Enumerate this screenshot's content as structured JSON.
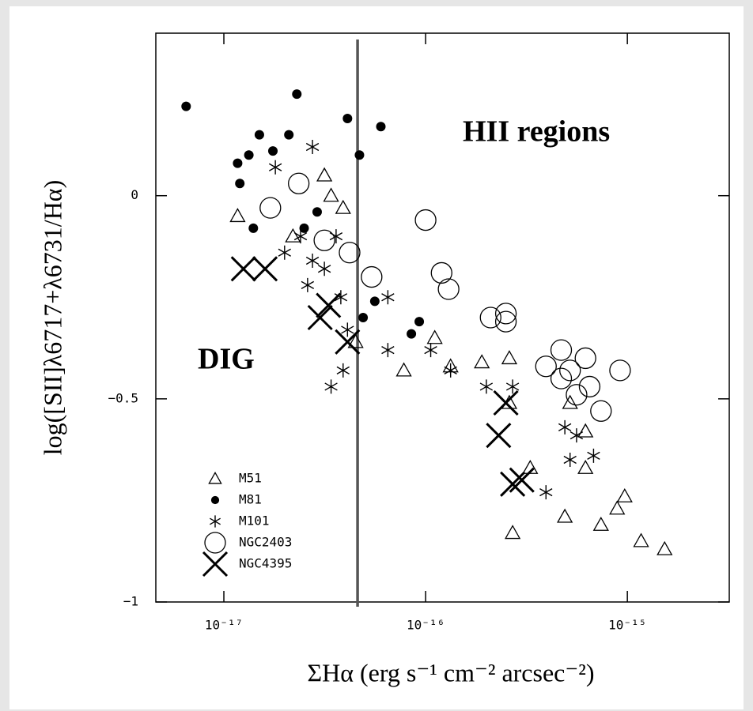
{
  "chart_data": {
    "type": "scatter",
    "xlabel": "ΣHα (erg s⁻¹ cm⁻² arcsec⁻²)",
    "ylabel": "log([SII]λ6717+λ6731/Hα)",
    "xscale": "log",
    "xlim": [
      4.6e-18,
      3.2e-15
    ],
    "ylim": [
      -1,
      0.4
    ],
    "xticks": [
      {
        "value": 1e-17,
        "label": "10⁻¹⁷"
      },
      {
        "value": 1e-16,
        "label": "10⁻¹⁶"
      },
      {
        "value": 1e-15,
        "label": "10⁻¹⁵"
      }
    ],
    "yticks": [
      {
        "value": -1,
        "label": "−1"
      },
      {
        "value": -0.5,
        "label": "−0.5"
      },
      0
    ],
    "vline_x": 4.6e-17,
    "annotations": [
      "HII regions",
      "DIG"
    ],
    "legend": "lower left",
    "series": [
      {
        "name": "M51",
        "marker": "triangle",
        "color": "#000000",
        "x": [
          1.17e-17,
          3.15e-17,
          3.4e-17,
          3.9e-17,
          2.2e-17,
          4.5e-17,
          7.8e-17,
          1.11e-16,
          1.33e-16,
          1.9e-16,
          2.6e-16,
          2.6e-16,
          5.2e-16,
          6.2e-16,
          3.3e-16,
          2.7e-16,
          4.9e-16,
          7.4e-16,
          8.9e-16,
          9.7e-16,
          1.17e-15,
          1.53e-15,
          6.2e-16
        ],
        "values": [
          -0.05,
          0.05,
          0,
          -0.03,
          -0.1,
          -0.36,
          -0.43,
          -0.35,
          -0.42,
          -0.41,
          -0.4,
          -0.51,
          -0.51,
          -0.58,
          -0.67,
          -0.83,
          -0.79,
          -0.81,
          -0.77,
          -0.74,
          -0.85,
          -0.87,
          -0.67
        ]
      },
      {
        "name": "M81",
        "marker": "dot",
        "color": "#000000",
        "x": [
          6.5e-18,
          1.17e-17,
          1.33e-17,
          1.5e-17,
          1.2e-17,
          1.75e-17,
          2.1e-17,
          2.3e-17,
          4.1e-17,
          4.7e-17,
          6e-17,
          1.4e-17,
          2.5e-17,
          2.9e-17,
          4.9e-17,
          5.6e-17,
          8.5e-17,
          9.3e-17
        ],
        "values": [
          0.22,
          0.08,
          0.1,
          0.15,
          0.03,
          0.11,
          0.15,
          0.25,
          0.19,
          0.1,
          0.17,
          -0.08,
          -0.08,
          -0.04,
          -0.3,
          -0.26,
          -0.34,
          -0.31
        ]
      },
      {
        "name": "M101",
        "marker": "asterisk",
        "color": "#000000",
        "x": [
          2.75e-17,
          1.8e-17,
          2e-17,
          2.4e-17,
          2.75e-17,
          2.6e-17,
          3.15e-17,
          3.6e-17,
          3.8e-17,
          3.4e-17,
          3.9e-17,
          4.1e-17,
          6.5e-17,
          6.5e-17,
          1.06e-16,
          1.33e-16,
          2e-16,
          2.7e-16,
          3.95e-16,
          4.9e-16,
          5.6e-16,
          6.8e-16,
          5.2e-16
        ],
        "values": [
          0.12,
          0.07,
          -0.14,
          -0.1,
          -0.16,
          -0.22,
          -0.18,
          -0.1,
          -0.25,
          -0.47,
          -0.43,
          -0.33,
          -0.25,
          -0.38,
          -0.38,
          -0.43,
          -0.47,
          -0.47,
          -0.73,
          -0.57,
          -0.59,
          -0.64,
          -0.65
        ]
      },
      {
        "name": "NGC2403",
        "marker": "circle",
        "color": "#000000",
        "x": [
          1.7e-17,
          2.35e-17,
          3.15e-17,
          4.2e-17,
          5.4e-17,
          1e-16,
          1.2e-16,
          1.3e-16,
          2.1e-16,
          2.5e-16,
          2.5e-16,
          3.95e-16,
          4.7e-16,
          5.2e-16,
          6.2e-16,
          6.5e-16,
          5.6e-16,
          7.4e-16,
          9.2e-16,
          4.7e-16
        ],
        "values": [
          -0.03,
          0.03,
          -0.11,
          -0.14,
          -0.2,
          -0.06,
          -0.19,
          -0.23,
          -0.3,
          -0.29,
          -0.31,
          -0.42,
          -0.38,
          -0.43,
          -0.4,
          -0.47,
          -0.49,
          -0.53,
          -0.43,
          -0.45
        ]
      },
      {
        "name": "NGC4395",
        "marker": "cross",
        "color": "#000000",
        "x": [
          1.25e-17,
          1.6e-17,
          3e-17,
          3.3e-17,
          4.1e-17,
          2.3e-16,
          2.5e-16,
          2.7e-16,
          3e-16
        ],
        "values": [
          -0.18,
          -0.18,
          -0.3,
          -0.27,
          -0.36,
          -0.59,
          -0.51,
          -0.71,
          -0.7
        ]
      }
    ]
  }
}
